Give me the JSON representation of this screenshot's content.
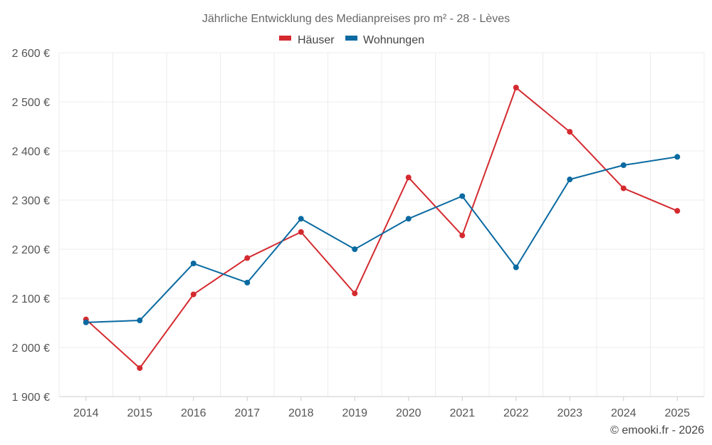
{
  "chart_data": {
    "type": "line",
    "title": "Jährliche Entwicklung des Medianpreises pro m² - 28 - Lèves",
    "categories": [
      "2014",
      "2015",
      "2016",
      "2017",
      "2018",
      "2019",
      "2020",
      "2021",
      "2022",
      "2023",
      "2024",
      "2025"
    ],
    "series": [
      {
        "name": "Häuser",
        "color": "#d42a2f",
        "values": [
          2057,
          1958,
          2108,
          2182,
          2235,
          2110,
          2346,
          2228,
          2529,
          2439,
          2324,
          2278
        ]
      },
      {
        "name": "Wohnungen",
        "color": "#0a6aa1",
        "values": [
          2051,
          2055,
          2171,
          2132,
          2262,
          2200,
          2262,
          2308,
          2163,
          2342,
          2371,
          2388
        ]
      }
    ],
    "ylim": [
      1900,
      2600
    ],
    "yticks": [
      1900,
      2000,
      2100,
      2200,
      2300,
      2400,
      2500,
      2600
    ],
    "ytick_labels": [
      "1 900 €",
      "2 000 €",
      "2 100 €",
      "2 200 €",
      "2 300 €",
      "2 400 €",
      "2 500 €",
      "2 600 €"
    ],
    "xlabel": "",
    "ylabel": "",
    "grid": true,
    "legend_position": "top-center"
  },
  "credit": "© emooki.fr - 2026"
}
